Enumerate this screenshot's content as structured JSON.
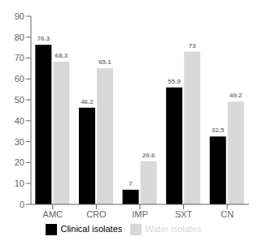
{
  "chart_data": {
    "type": "bar",
    "categories": [
      "AMC",
      "CRO",
      "IMP",
      "SXT",
      "CN"
    ],
    "series": [
      {
        "name": "Clinical isolates",
        "color": "#000000",
        "values": [
          76.3,
          46.2,
          7.0,
          55.9,
          32.5
        ]
      },
      {
        "name": "Water isolates",
        "color": "#d8d8d8",
        "values": [
          68.3,
          65.1,
          20.6,
          73.0,
          49.2
        ]
      }
    ],
    "ylim": [
      0,
      90
    ],
    "yticks": [
      0,
      10,
      20,
      30,
      40,
      50,
      60,
      70,
      80,
      90
    ],
    "grid": false,
    "legend": "bottom",
    "data_labels": true
  }
}
